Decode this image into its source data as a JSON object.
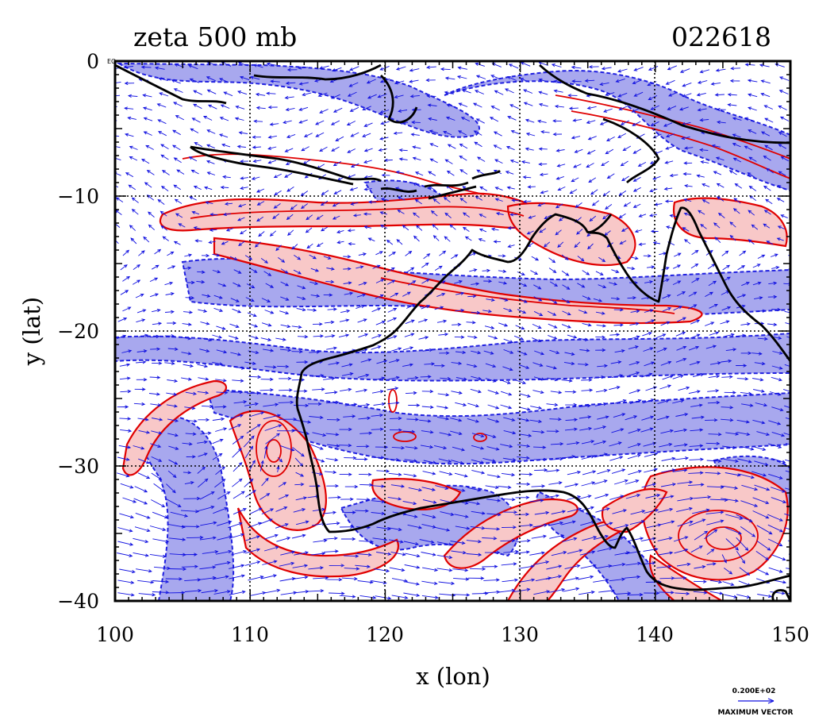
{
  "title": {
    "left": "zeta 500 mb",
    "right": "022618"
  },
  "axes": {
    "xlabel": "x (lon)",
    "ylabel": "y (lat)",
    "xlim": [
      100,
      150
    ],
    "ylim": [
      -40,
      0
    ],
    "x_ticks": [
      "100",
      "110",
      "120",
      "130",
      "140",
      "150"
    ],
    "y_ticks": [
      "0",
      "−10",
      "−20",
      "−30",
      "−40"
    ],
    "eq_label": "EQ",
    "grid": "dotted lines every 10 degrees"
  },
  "legend": {
    "vector_value": "0.200E+02",
    "vector_caption": "MAXIMUM VECTOR"
  },
  "colors": {
    "positive_fill": "#f8c8c8",
    "positive_line": "#e00000",
    "negative_fill": "#a8a8ee",
    "negative_line": "#0000e0",
    "vectors": "#1010e0",
    "coastline": "#000000"
  },
  "chart_data": {
    "type": "heatmap",
    "field": "relative vorticity (zeta) with wind vectors",
    "level": "500 mb",
    "positive_regions": [
      {
        "name": "band-10S",
        "lon": [
          104,
          139
        ],
        "lat": [
          -10,
          -13
        ]
      },
      {
        "name": "band-16S",
        "lon": [
          108,
          137
        ],
        "lat": [
          -15,
          -18.5
        ]
      },
      {
        "name": "southwest-arc",
        "lon": [
          100,
          106
        ],
        "lat": [
          -24,
          -31
        ]
      },
      {
        "name": "swirl-110E",
        "lon": [
          109,
          122
        ],
        "lat": [
          -25,
          -38
        ]
      },
      {
        "name": "cyclone-145E",
        "lon": [
          138,
          150
        ],
        "lat": [
          -30,
          -39
        ]
      },
      {
        "name": "band-north-aus",
        "lon": [
          133,
          146
        ],
        "lat": [
          -9,
          -13
        ]
      }
    ],
    "negative_regions": [
      {
        "name": "band-16S",
        "lon": [
          105,
          150
        ],
        "lat": [
          -15,
          -18
        ]
      },
      {
        "name": "band-21S",
        "lon": [
          100,
          150
        ],
        "lat": [
          -20,
          -22
        ]
      },
      {
        "name": "band-26S",
        "lon": [
          108,
          150
        ],
        "lat": [
          -25,
          -29
        ]
      },
      {
        "name": "south-west",
        "lon": [
          102,
          110
        ],
        "lat": [
          -26,
          -40
        ]
      },
      {
        "name": "java-sea",
        "lon": [
          100,
          125
        ],
        "lat": [
          0,
          -6
        ]
      },
      {
        "name": "arafura",
        "lon": [
          127,
          150
        ],
        "lat": [
          -2,
          -9
        ]
      }
    ],
    "cyclone_center": {
      "lon": 145,
      "lat": -35
    }
  }
}
